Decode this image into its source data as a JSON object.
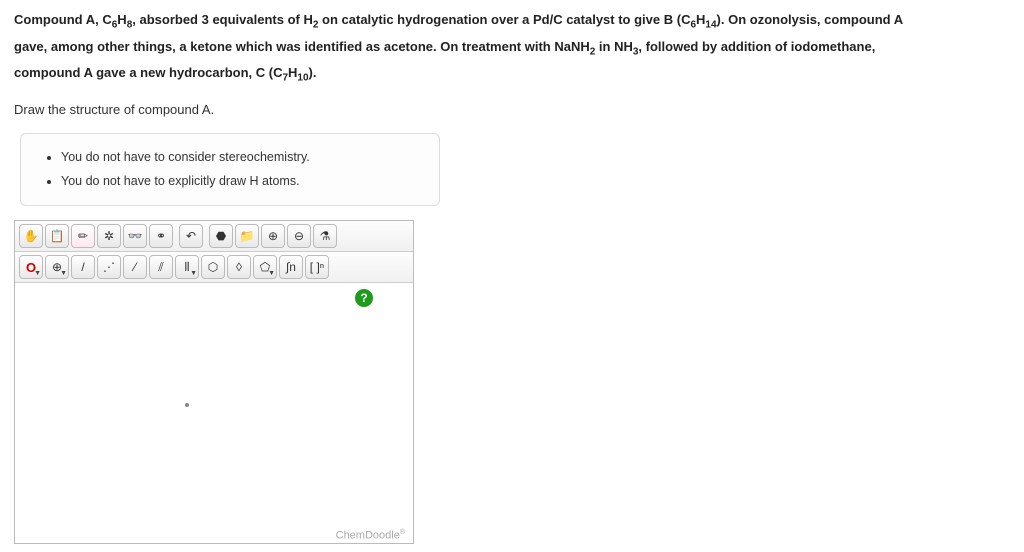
{
  "question": {
    "line1_parts": [
      "Compound A, C",
      "6",
      "H",
      "8",
      ", absorbed 3 equivalents of H",
      "2",
      " on catalytic hydrogenation over a Pd/C catalyst to give B (C",
      "6",
      "H",
      "14",
      "). On ozonolysis, compound A"
    ],
    "line2_parts": [
      "gave, among other things, a ketone which was identified as acetone. On treatment with NaNH",
      "2",
      " in NH",
      "3",
      ", followed by addition of iodomethane,"
    ],
    "line3_parts": [
      "compound A gave a new hydrocarbon, C (C",
      "7",
      "H",
      "10",
      ")."
    ],
    "instruction": "Draw the structure of compound A."
  },
  "hints": [
    "You do not have to consider stereochemistry.",
    "You do not have to explicitly draw H atoms."
  ],
  "toolbar": {
    "row1": [
      {
        "name": "hand-tool",
        "glyph": "✋"
      },
      {
        "name": "clipboard-tool",
        "glyph": "📋"
      },
      {
        "name": "eraser-tool",
        "glyph": "✏"
      },
      {
        "name": "center-tool",
        "glyph": "✲"
      },
      {
        "name": "glasses-tool",
        "glyph": "👓"
      },
      {
        "name": "link-tool",
        "glyph": "⚭"
      },
      {
        "name": "undo-tool",
        "glyph": "↶"
      },
      {
        "name": "molecule-tool",
        "glyph": "⬣"
      },
      {
        "name": "folder-tool",
        "glyph": "📁"
      },
      {
        "name": "zoom-in-tool",
        "glyph": "⊕"
      },
      {
        "name": "zoom-out-tool",
        "glyph": "⊖"
      },
      {
        "name": "chemistry-tool",
        "glyph": "⚗"
      }
    ],
    "row2": [
      {
        "name": "element-o-tool",
        "glyph": "O",
        "dd": true,
        "cls": "o-label"
      },
      {
        "name": "charge-tool",
        "glyph": "⊕",
        "dd": true
      },
      {
        "name": "single-bond-tool",
        "glyph": "/"
      },
      {
        "name": "chain-tool",
        "glyph": "⋰"
      },
      {
        "name": "double-bond-tool",
        "glyph": "⁄"
      },
      {
        "name": "triple-bond-tool",
        "glyph": "⫽"
      },
      {
        "name": "multi-bond-tool",
        "glyph": "⫴",
        "dd": true
      },
      {
        "name": "hexagon-tool",
        "glyph": "⬡"
      },
      {
        "name": "cube-tool",
        "glyph": "◊"
      },
      {
        "name": "pentagon-tool",
        "glyph": "⬠",
        "dd": true
      },
      {
        "name": "integral-tool",
        "glyph": "∫n"
      },
      {
        "name": "bracket-tool",
        "glyph": "[ ]ⁿ"
      }
    ]
  },
  "canvas": {
    "help_label": "?",
    "brand": "ChemDoodle"
  },
  "colors": {
    "border": "#bbbbbb",
    "help_bg": "#1c9b1c",
    "element_o": "#cc0000"
  }
}
